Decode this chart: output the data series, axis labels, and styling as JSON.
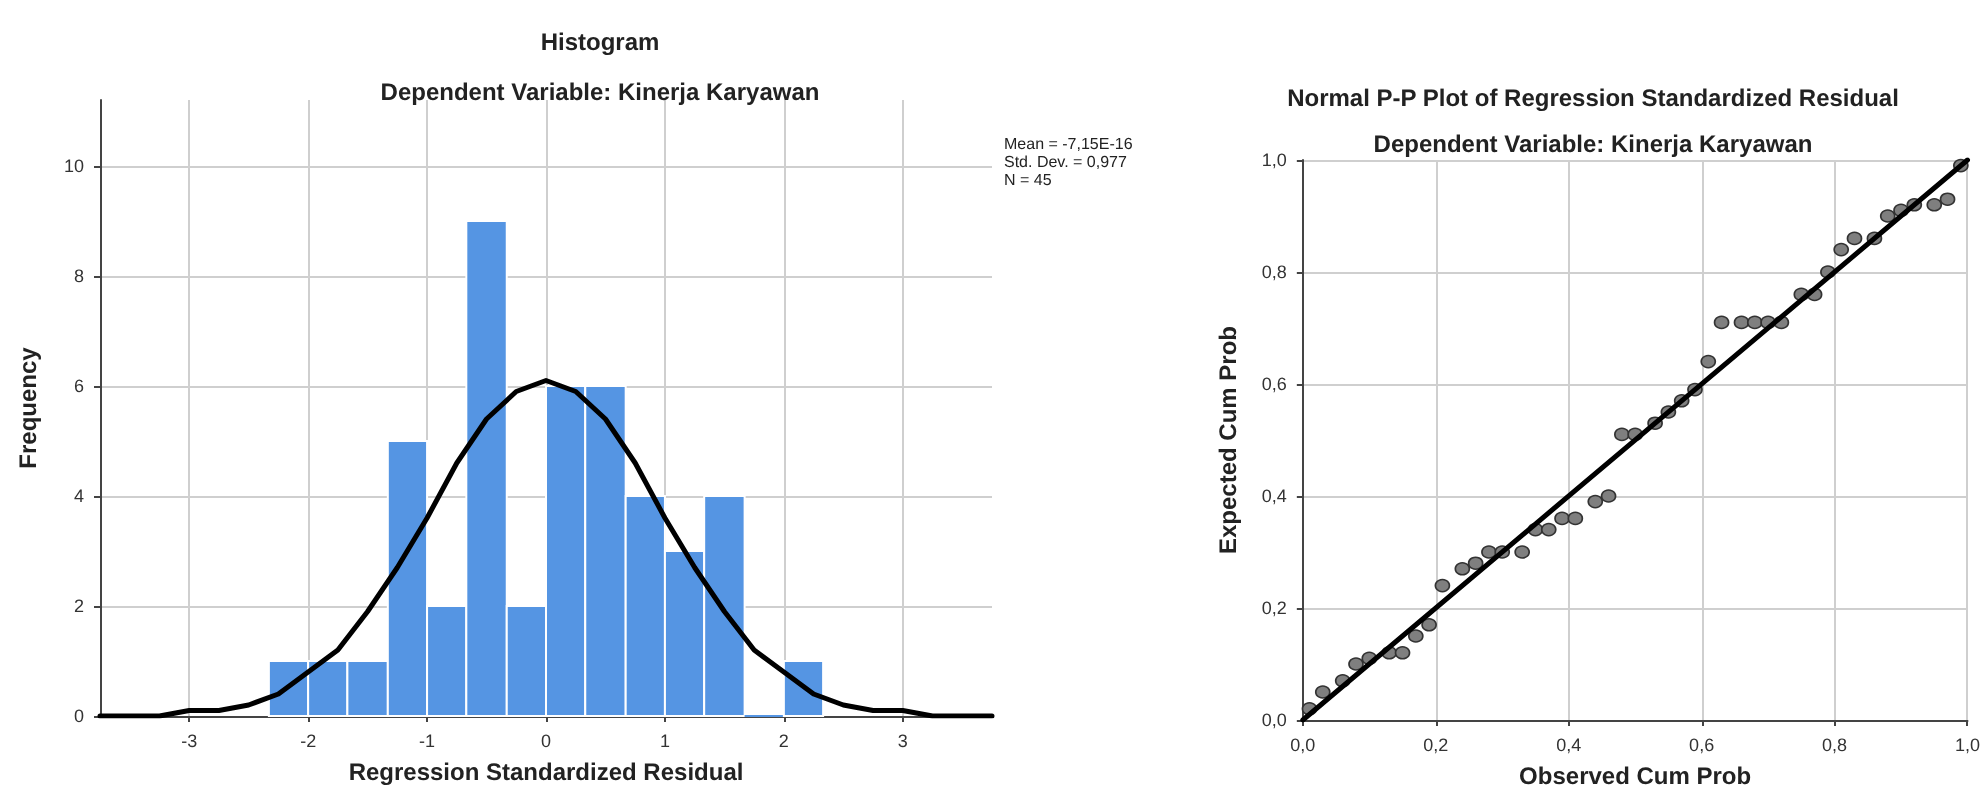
{
  "chart_data": [
    {
      "type": "histogram",
      "title": "Histogram",
      "subtitle": "Dependent Variable: Kinerja Karyawan",
      "xlabel": "Regression Standardized Residual",
      "ylabel": "Frequency",
      "bins": [
        -2.33,
        -2,
        -1.67,
        -1.33,
        -1,
        -0.67,
        -0.33,
        0,
        0.33,
        0.67,
        1,
        1.33,
        1.67,
        2,
        2.33
      ],
      "values": [
        1,
        1,
        1,
        5,
        2,
        9,
        2,
        6,
        6,
        4,
        3,
        4,
        0,
        1
      ],
      "color": "#5595e3",
      "series": [
        {
          "type": "line",
          "color": "#000000",
          "marker": "none",
          "x": [
            -3.75,
            -3.5,
            -3.25,
            -3,
            -2.75,
            -2.5,
            -2.25,
            -2,
            -1.75,
            -1.5,
            -1.25,
            -1,
            -0.75,
            -0.5,
            -0.25,
            0,
            0.25,
            0.5,
            0.75,
            1,
            1.25,
            1.5,
            1.75,
            2,
            2.25,
            2.5,
            2.75,
            3,
            3.25,
            3.5,
            3.75
          ],
          "values": [
            0,
            0,
            0,
            0.1,
            0.1,
            0.2,
            0.4,
            0.8,
            1.2,
            1.9,
            2.7,
            3.6,
            4.6,
            5.4,
            5.9,
            6.1,
            5.9,
            5.4,
            4.6,
            3.6,
            2.7,
            1.9,
            1.2,
            0.8,
            0.4,
            0.2,
            0.1,
            0.1,
            0,
            0,
            0
          ]
        }
      ],
      "xlim": [
        -3.75,
        3.75
      ],
      "xticks": [
        -3,
        -2,
        -1,
        0,
        1,
        2,
        3
      ],
      "ylim": [
        0,
        11.2
      ],
      "yticks": [
        0,
        2,
        4,
        6,
        8,
        10
      ],
      "grid": true,
      "annotations": [
        "Mean = -7,15E-16",
        "Std. Dev. = 0,977",
        "N = 45"
      ]
    },
    {
      "type": "scatter",
      "title": "Normal P-P Plot of Regression Standardized Residual",
      "subtitle": "Dependent Variable: Kinerja Karyawan",
      "xlabel": "Observed Cum Prob",
      "ylabel": "Expected Cum Prob",
      "series": [
        {
          "type": "scatter",
          "color": "#7f7f7f",
          "marker": "circle",
          "x": [
            0.01,
            0.03,
            0.06,
            0.08,
            0.1,
            0.13,
            0.15,
            0.17,
            0.19,
            0.21,
            0.24,
            0.26,
            0.28,
            0.3,
            0.33,
            0.35,
            0.37,
            0.39,
            0.41,
            0.44,
            0.46,
            0.48,
            0.5,
            0.53,
            0.55,
            0.57,
            0.59,
            0.61,
            0.63,
            0.66,
            0.68,
            0.7,
            0.72,
            0.75,
            0.77,
            0.79,
            0.81,
            0.83,
            0.86,
            0.88,
            0.9,
            0.92,
            0.95,
            0.97,
            0.99
          ],
          "values": [
            0.02,
            0.05,
            0.07,
            0.1,
            0.11,
            0.12,
            0.12,
            0.15,
            0.17,
            0.24,
            0.27,
            0.28,
            0.3,
            0.3,
            0.3,
            0.34,
            0.34,
            0.36,
            0.36,
            0.39,
            0.4,
            0.51,
            0.51,
            0.53,
            0.55,
            0.57,
            0.59,
            0.64,
            0.71,
            0.71,
            0.71,
            0.71,
            0.71,
            0.76,
            0.76,
            0.8,
            0.84,
            0.86,
            0.86,
            0.9,
            0.91,
            0.92,
            0.92,
            0.93,
            0.99
          ]
        },
        {
          "type": "line",
          "color": "#000000",
          "marker": "none",
          "x": [
            0,
            1
          ],
          "values": [
            0,
            1
          ]
        }
      ],
      "xlim": [
        0,
        1
      ],
      "xticks": [
        {
          "value": 0,
          "label": "0,0"
        },
        {
          "value": 0.2,
          "label": "0,2"
        },
        {
          "value": 0.4,
          "label": "0,4"
        },
        {
          "value": 0.6,
          "label": "0,6"
        },
        {
          "value": 0.8,
          "label": "0,8"
        },
        {
          "value": 1,
          "label": "1,0"
        }
      ],
      "ylim": [
        0,
        1
      ],
      "yticks": [
        {
          "value": 0,
          "label": "0,0"
        },
        {
          "value": 0.2,
          "label": "0,2"
        },
        {
          "value": 0.4,
          "label": "0,4"
        },
        {
          "value": 0.6,
          "label": "0,6"
        },
        {
          "value": 0.8,
          "label": "0,8"
        },
        {
          "value": 1,
          "label": "1,0"
        }
      ],
      "grid": true
    }
  ]
}
